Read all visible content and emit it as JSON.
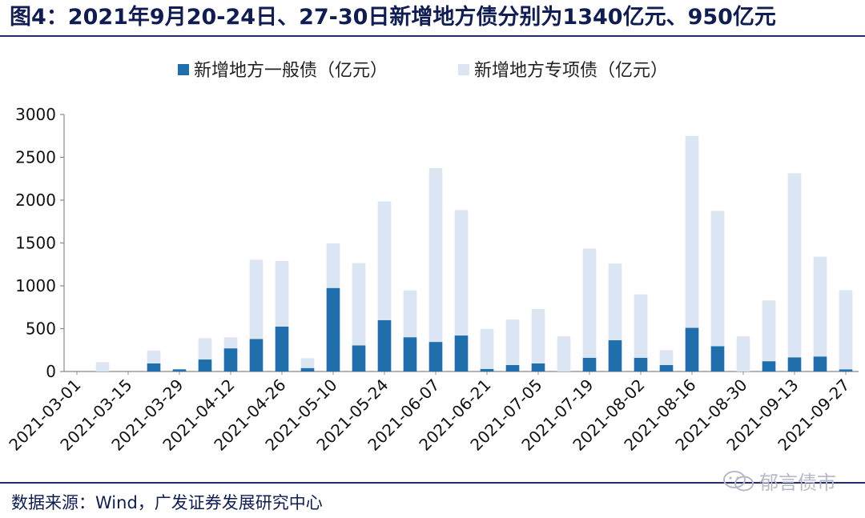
{
  "header": {
    "title": "图4：2021年9月20-24日、27-30日新增地方债分别为1340亿元、950亿元"
  },
  "footer": {
    "source": "数据来源：Wind，广发证券发展研究中心",
    "watermark": "郁言债市"
  },
  "colors": {
    "general": "#1f6fac",
    "special": "#dce6f3",
    "title": "#0f1d54",
    "axis": "#888888"
  },
  "chart_data": {
    "type": "bar",
    "stacked": true,
    "legend_position": "top-center",
    "grid": false,
    "ylim": [
      0,
      3000
    ],
    "yticks": [
      0,
      500,
      1000,
      1500,
      2000,
      2500,
      3000
    ],
    "categories": [
      "2021-03-01",
      "2021-03-08",
      "2021-03-15",
      "2021-03-22",
      "2021-03-29",
      "2021-04-05",
      "2021-04-12",
      "2021-04-19",
      "2021-04-26",
      "2021-05-03",
      "2021-05-10",
      "2021-05-17",
      "2021-05-24",
      "2021-05-31",
      "2021-06-07",
      "2021-06-14",
      "2021-06-21",
      "2021-06-28",
      "2021-07-05",
      "2021-07-12",
      "2021-07-19",
      "2021-07-26",
      "2021-08-02",
      "2021-08-09",
      "2021-08-16",
      "2021-08-23",
      "2021-08-30",
      "2021-09-06",
      "2021-09-13",
      "2021-09-20",
      "2021-09-27"
    ],
    "xtick_labels": [
      "2021-03-01",
      "2021-03-15",
      "2021-03-29",
      "2021-04-12",
      "2021-04-26",
      "2021-05-10",
      "2021-05-24",
      "2021-06-07",
      "2021-06-21",
      "2021-07-05",
      "2021-07-19",
      "2021-08-02",
      "2021-08-16",
      "2021-08-30",
      "2021-09-13",
      "2021-09-27"
    ],
    "series": [
      {
        "name": "新增地方一般债（亿元）",
        "values": [
          0,
          0,
          0,
          95,
          25,
          140,
          270,
          380,
          525,
          40,
          975,
          305,
          600,
          400,
          345,
          420,
          30,
          75,
          95,
          0,
          160,
          365,
          160,
          75,
          510,
          295,
          0,
          120,
          165,
          175,
          25
        ]
      },
      {
        "name": "新增地方专项债（亿元）",
        "values": [
          0,
          110,
          0,
          150,
          0,
          250,
          130,
          925,
          765,
          115,
          520,
          960,
          1385,
          545,
          2030,
          1465,
          465,
          530,
          635,
          410,
          1275,
          895,
          740,
          175,
          2240,
          1580,
          410,
          710,
          2150,
          1165,
          925
        ]
      }
    ]
  }
}
